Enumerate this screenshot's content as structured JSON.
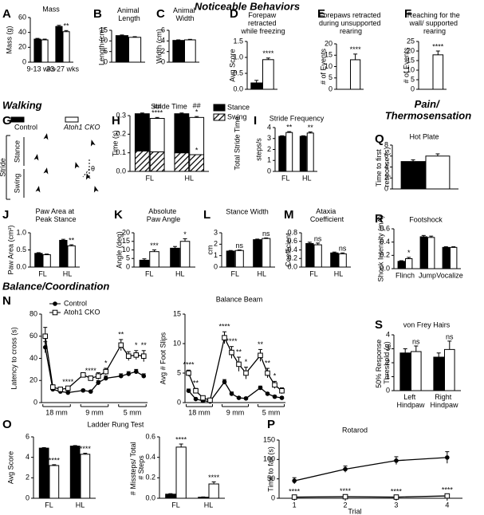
{
  "sections": [
    "Noticeable Behaviors",
    "Walking",
    "Pain/ Thermosensation",
    "Balance/Coordination"
  ],
  "chart_data": [
    {
      "panel": "A",
      "type": "bar",
      "title": "Mass",
      "ylabel": "Mass (g)",
      "categories": [
        "9-13 wks",
        "23-27 wks"
      ],
      "ylim": [
        0,
        60
      ],
      "yticks": [
        0,
        20,
        40,
        60
      ],
      "series": [
        {
          "color": "#000000",
          "values": [
            31,
            48
          ],
          "errors": [
            1,
            1.5
          ]
        },
        {
          "color": "#ffffff",
          "values": [
            30,
            41
          ],
          "errors": [
            1,
            1.5
          ],
          "significance": [
            null,
            "**"
          ]
        }
      ]
    },
    {
      "panel": "B",
      "type": "bar",
      "title": "Animal Length",
      "ylabel": "Length (cm)",
      "categories": [
        null
      ],
      "ylim": [
        0,
        15
      ],
      "yticks": [
        0,
        5,
        10,
        15
      ],
      "series": [
        {
          "color": "#000000",
          "values": [
            12.5
          ],
          "errors": [
            0.3
          ]
        },
        {
          "color": "#ffffff",
          "values": [
            11.7
          ],
          "errors": [
            0.3
          ]
        }
      ]
    },
    {
      "panel": "C",
      "type": "bar",
      "title": "Animal Width",
      "ylabel": "Width (cm)",
      "categories": [
        null
      ],
      "ylim": [
        0,
        6
      ],
      "yticks": [
        0,
        2,
        4,
        6
      ],
      "series": [
        {
          "color": "#000000",
          "values": [
            4.1
          ],
          "errors": [
            0.1
          ]
        },
        {
          "color": "#ffffff",
          "values": [
            4.2
          ],
          "errors": [
            0.1
          ]
        }
      ]
    },
    {
      "panel": "D",
      "type": "bar",
      "title": "Forepaw retracted while freezing",
      "ylabel": "Avg Score",
      "categories": [
        null
      ],
      "ylim": [
        0,
        1.5
      ],
      "yticks": [
        {
          "value": 0,
          "label": "0.0"
        },
        {
          "value": 0.5,
          "label": "0.5"
        },
        {
          "value": 1,
          "label": "1.0"
        },
        {
          "value": 1.5,
          "label": "1.5"
        }
      ],
      "series": [
        {
          "color": "#000000",
          "values": [
            0.2
          ],
          "errors": [
            0.08
          ]
        },
        {
          "color": "#ffffff",
          "values": [
            0.93
          ],
          "errors": [
            0.05
          ],
          "significance": [
            "****"
          ]
        }
      ]
    },
    {
      "panel": "E",
      "type": "bar",
      "title": "Forepaws retracted during unsupported rearing",
      "ylabel": "# of Events",
      "categories": [
        null
      ],
      "ylim": [
        0,
        20
      ],
      "yticks": [
        0,
        5,
        10,
        15,
        20
      ],
      "series": [
        {
          "color": "#000000",
          "values": [
            0
          ],
          "errors": [
            0
          ]
        },
        {
          "color": "#ffffff",
          "values": [
            13
          ],
          "errors": [
            2.5
          ],
          "significance": [
            "****"
          ]
        }
      ]
    },
    {
      "panel": "F",
      "type": "bar",
      "title": "Reaching for the wall/ supported rearing",
      "ylabel": "# of Events",
      "categories": [
        null
      ],
      "ylim": [
        0,
        25
      ],
      "yticks": [
        0,
        5,
        10,
        15,
        20,
        25
      ],
      "series": [
        {
          "color": "#000000",
          "values": [
            0
          ],
          "errors": [
            0
          ]
        },
        {
          "color": "#ffffff",
          "values": [
            18
          ],
          "errors": [
            2
          ],
          "significance": [
            "****"
          ]
        }
      ]
    },
    {
      "panel": "G",
      "type": "diagram",
      "legend": [
        "Control",
        "Atoh1 CKO"
      ],
      "labels": [
        "Stance",
        "Swing",
        "Stride",
        "θ"
      ]
    },
    {
      "panel": "H",
      "type": "stacked-bar",
      "title": "Stride Time",
      "ylabel": "Time (s)",
      "right_label": "Total Stride Time",
      "categories": [
        "FL",
        "HL"
      ],
      "ylim": [
        0,
        0.3
      ],
      "yticks": [
        {
          "value": 0,
          "label": "0.0"
        },
        {
          "value": 0.1,
          "label": "0.1"
        },
        {
          "value": 0.2,
          "label": "0.2"
        },
        {
          "value": 0.3,
          "label": "0.3"
        }
      ],
      "segments": [
        {
          "name": "Stance",
          "color": "#000000"
        },
        {
          "name": "Swing",
          "pattern": "hatch"
        }
      ],
      "series": [
        {
          "color": "#000000",
          "values": [
            [
              0.2,
              0.11
            ],
            [
              0.21,
              0.1
            ]
          ],
          "errors": [
            0.004,
            0.004
          ]
        },
        {
          "color": "#ffffff",
          "values": [
            [
              0.18,
              0.105
            ],
            [
              0.2,
              0.09
            ]
          ],
          "errors": [
            0.005,
            0.005
          ],
          "significance": [
            [
              "##",
              "****"
            ],
            [
              "##",
              "*"
            ]
          ],
          "swing_significance": [
            null,
            "*"
          ]
        }
      ]
    },
    {
      "panel": "I",
      "type": "bar",
      "title": "Stride Frequency",
      "ylabel": "steps/s",
      "categories": [
        "FL",
        "HL"
      ],
      "ylim": [
        0,
        4
      ],
      "yticks": [
        0,
        1,
        2,
        3,
        4
      ],
      "series": [
        {
          "color": "#000000",
          "values": [
            3.2,
            3.2
          ],
          "errors": [
            0.05,
            0.05
          ]
        },
        {
          "color": "#ffffff",
          "values": [
            3.55,
            3.5
          ],
          "errors": [
            0.08,
            0.1
          ],
          "significance": [
            "**",
            "**"
          ]
        }
      ]
    },
    {
      "panel": "Q",
      "type": "bar",
      "title": "Hot Plate",
      "ylabel": "Time to first response (s)",
      "categories": [
        null
      ],
      "ylim": [
        0,
        8
      ],
      "yticks": [
        0,
        2,
        4,
        6,
        8
      ],
      "series": [
        {
          "color": "#000000",
          "values": [
            5
          ],
          "errors": [
            0.3
          ]
        },
        {
          "color": "#ffffff",
          "values": [
            6
          ],
          "errors": [
            0.4
          ]
        }
      ]
    },
    {
      "panel": "J",
      "type": "bar",
      "title": "Paw Area at Peak Stance",
      "ylabel": "Paw Area (cm²)",
      "categories": [
        "FL",
        "HL"
      ],
      "ylim": [
        0,
        1
      ],
      "yticks": [
        {
          "value": 0,
          "label": "0.0"
        },
        {
          "value": 0.5,
          "label": "0.5"
        },
        {
          "value": 1,
          "label": "1.0"
        }
      ],
      "series": [
        {
          "color": "#000000",
          "values": [
            0.4,
            0.78
          ],
          "errors": [
            0.02,
            0.03
          ]
        },
        {
          "color": "#ffffff",
          "values": [
            0.36,
            0.62
          ],
          "errors": [
            0.02,
            0.03
          ],
          "significance": [
            null,
            "**"
          ]
        }
      ]
    },
    {
      "panel": "K",
      "type": "bar",
      "title": "Absolute Paw Angle",
      "ylabel": "Angle (deg)",
      "categories": [
        "FL",
        "HL"
      ],
      "ylim": [
        0,
        20
      ],
      "yticks": [
        0,
        5,
        10,
        15,
        20
      ],
      "series": [
        {
          "color": "#000000",
          "values": [
            4,
            11
          ],
          "errors": [
            0.8,
            1
          ]
        },
        {
          "color": "#ffffff",
          "values": [
            9,
            15
          ],
          "errors": [
            1,
            1.5
          ],
          "significance": [
            "***",
            "*"
          ]
        }
      ]
    },
    {
      "panel": "L",
      "type": "bar",
      "title": "Stance Width",
      "ylabel": "cm",
      "categories": [
        "FL",
        "HL"
      ],
      "ylim": [
        0,
        3
      ],
      "yticks": [
        0,
        1,
        2,
        3
      ],
      "series": [
        {
          "color": "#000000",
          "values": [
            1.4,
            2.4
          ],
          "errors": [
            0.05,
            0.05
          ]
        },
        {
          "color": "#ffffff",
          "values": [
            1.45,
            2.5
          ],
          "errors": [
            0.05,
            0.05
          ],
          "significance": [
            "ns",
            "ns"
          ]
        }
      ]
    },
    {
      "panel": "M",
      "type": "bar",
      "title": "Ataxia Coefficient",
      "ylabel": "Coefficient",
      "categories": [
        "FL",
        "HL"
      ],
      "ylim": [
        0,
        0.8
      ],
      "yticks": [
        {
          "value": 0,
          "label": "0.0"
        },
        {
          "value": 0.2,
          "label": "0.2"
        },
        {
          "value": 0.4,
          "label": "0.4"
        },
        {
          "value": 0.6,
          "label": "0.6"
        },
        {
          "value": 0.8,
          "label": "0.8"
        }
      ],
      "series": [
        {
          "color": "#000000",
          "values": [
            0.55,
            0.33
          ],
          "errors": [
            0.03,
            0.02
          ]
        },
        {
          "color": "#ffffff",
          "values": [
            0.52,
            0.31
          ],
          "errors": [
            0.04,
            0.02
          ],
          "significance": [
            "ns",
            "ns"
          ]
        }
      ]
    },
    {
      "panel": "R",
      "type": "bar",
      "title": "Footshock",
      "ylabel": "Shock Intensity (mA)",
      "categories": [
        "Flinch",
        "Jump",
        "Vocalize"
      ],
      "ylim": [
        0,
        0.6
      ],
      "yticks": [
        {
          "value": 0,
          "label": "0.0"
        },
        {
          "value": 0.2,
          "label": "0.2"
        },
        {
          "value": 0.4,
          "label": "0.4"
        },
        {
          "value": 0.6,
          "label": "0.6"
        }
      ],
      "series": [
        {
          "color": "#000000",
          "values": [
            0.11,
            0.48,
            0.32
          ],
          "errors": [
            0.01,
            0.02,
            0.01
          ]
        },
        {
          "color": "#ffffff",
          "values": [
            0.15,
            0.47,
            0.32
          ],
          "errors": [
            0.02,
            0.02,
            0.01
          ],
          "significance": [
            "*",
            null,
            null
          ]
        }
      ]
    },
    {
      "panel": "N",
      "type": "line",
      "title": "Balance Beam",
      "ylabel": "Latency to cross (s)",
      "categories": [
        null,
        null,
        null,
        null,
        null,
        null,
        null,
        null,
        null,
        null,
        null,
        null
      ],
      "group_labels": [
        "18 mm",
        "9 mm",
        "5 mm"
      ],
      "ylim": [
        0,
        80
      ],
      "yticks": [
        0,
        20,
        40,
        60,
        80
      ],
      "series": [
        {
          "name": "Control",
          "color": "#000000",
          "marker": "circle",
          "values": [
            50,
            12,
            10,
            9,
            11,
            10,
            18,
            22,
            24,
            26,
            28,
            24
          ],
          "errors": [
            5,
            1,
            1,
            1,
            1,
            1,
            2,
            2,
            2,
            2,
            2,
            2
          ]
        },
        {
          "name": "Atoh1 CKO",
          "color": "#000000",
          "marker": "square",
          "values": [
            60,
            14,
            12,
            13,
            25,
            22,
            24,
            28,
            52,
            42,
            43,
            42
          ],
          "errors": [
            8,
            2,
            1,
            1,
            2,
            2,
            3,
            3,
            5,
            4,
            4,
            5
          ],
          "significance": [
            null,
            null,
            null,
            "****",
            null,
            "****",
            null,
            "*",
            "**",
            null,
            "*",
            "**"
          ]
        }
      ]
    },
    {
      "type": "line",
      "ylabel": "Avg # Foot Slips",
      "categories": [
        null,
        null,
        null,
        null,
        null,
        null,
        null,
        null,
        null,
        null,
        null,
        null
      ],
      "group_labels": [
        "18 mm",
        "9 mm",
        "5 mm"
      ],
      "ylim": [
        0,
        15
      ],
      "yticks": [
        0,
        5,
        10,
        15
      ],
      "series": [
        {
          "color": "#000000",
          "marker": "circle",
          "values": [
            2,
            0.6,
            0.3,
            0.2,
            3.5,
            1.5,
            0.8,
            0.7,
            2.5,
            1.5,
            1,
            0.8
          ],
          "errors": [
            0.3,
            0.2,
            0.1,
            0.1,
            0.4,
            0.3,
            0.2,
            0.2,
            0.3,
            0.2,
            0.2,
            0.2
          ]
        },
        {
          "color": "#000000",
          "marker": "square",
          "values": [
            5,
            2,
            0.8,
            0.4,
            11,
            8.5,
            6.5,
            5,
            8,
            5,
            3,
            2
          ],
          "errors": [
            0.5,
            0.4,
            0.2,
            0.1,
            1,
            1,
            1.2,
            1,
            1,
            0.8,
            0.6,
            0.5
          ],
          "significance": [
            "****",
            "**",
            null,
            null,
            "****",
            "****",
            "**",
            "*",
            "**",
            "**",
            "*",
            null
          ]
        }
      ]
    },
    {
      "panel": "S",
      "type": "bar",
      "title": "von Frey Hairs",
      "ylabel": "50% Response Threshold (g)",
      "categories": [
        "Left Hindpaw",
        "Right Hindpaw"
      ],
      "ylim": [
        0,
        4
      ],
      "yticks": [
        0,
        1,
        2,
        3,
        4
      ],
      "series": [
        {
          "color": "#000000",
          "values": [
            2.7,
            2.4
          ],
          "errors": [
            0.3,
            0.3
          ]
        },
        {
          "color": "#ffffff",
          "values": [
            2.8,
            2.95
          ],
          "errors": [
            0.4,
            0.6
          ],
          "significance": [
            "ns",
            "ns"
          ]
        }
      ]
    },
    {
      "panel": "O",
      "type": "bar",
      "title": "Ladder Rung Test",
      "ylabel": "Avg Score",
      "categories": [
        "FL",
        "HL"
      ],
      "ylim": [
        0,
        6
      ],
      "yticks": [
        0,
        2,
        4,
        6
      ],
      "series": [
        {
          "color": "#000000",
          "values": [
            4.9,
            5.1
          ],
          "errors": [
            0.05,
            0.05
          ]
        },
        {
          "color": "#ffffff",
          "values": [
            3.2,
            4.3
          ],
          "errors": [
            0.08,
            0.1
          ],
          "significance": [
            "****",
            "****"
          ]
        }
      ]
    },
    {
      "type": "bar",
      "ylabel": "# Missteps/ Total # Steps",
      "categories": [
        "FL",
        "HL"
      ],
      "ylim": [
        0,
        0.6
      ],
      "yticks": [
        {
          "value": 0,
          "label": "0.0"
        },
        {
          "value": 0.2,
          "label": "0.2"
        },
        {
          "value": 0.4,
          "label": "0.4"
        },
        {
          "value": 0.6,
          "label": "0.6"
        }
      ],
      "series": [
        {
          "color": "#000000",
          "values": [
            0.04,
            0.01
          ],
          "errors": [
            0.005,
            0.003
          ]
        },
        {
          "color": "#ffffff",
          "values": [
            0.5,
            0.14
          ],
          "errors": [
            0.03,
            0.02
          ],
          "significance": [
            "****",
            "****"
          ]
        }
      ]
    },
    {
      "panel": "P",
      "type": "line",
      "title": "Rotarod",
      "ylabel": "Time to fall (s)",
      "xlabel": "Trial",
      "x": [
        1,
        2,
        3,
        4
      ],
      "xlim": [
        0.7,
        4.3
      ],
      "xticks": [
        1,
        2,
        3,
        4
      ],
      "ylim": [
        0,
        150
      ],
      "yticks": [
        0,
        50,
        100,
        150
      ],
      "series": [
        {
          "color": "#000000",
          "marker": "circle",
          "values": [
            45,
            75,
            97,
            105
          ],
          "errors": [
            8,
            8,
            10,
            15
          ]
        },
        {
          "color": "#000000",
          "marker": "square",
          "values": [
            3,
            4,
            3,
            6
          ],
          "errors": [
            1,
            1,
            1,
            2
          ],
          "significance": [
            "****",
            "****",
            "****",
            "****"
          ]
        }
      ]
    }
  ]
}
